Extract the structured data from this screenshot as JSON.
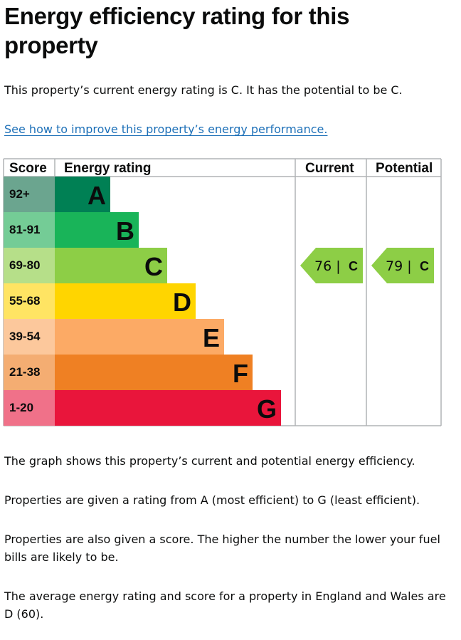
{
  "title": "Energy efficiency rating for this property",
  "summary": "This property’s current energy rating is C. It has the potential to be C.",
  "improve_link": "See how to improve this property’s energy performance.",
  "chart_data": {
    "type": "table",
    "columns": [
      "Score",
      "Energy rating",
      "Current",
      "Potential"
    ],
    "bands": [
      {
        "letter": "A",
        "score": "92+",
        "color": "#008054",
        "score_color": "#6ba58f"
      },
      {
        "letter": "B",
        "score": "81-91",
        "color": "#19b459",
        "score_color": "#74cc96"
      },
      {
        "letter": "C",
        "score": "69-80",
        "color": "#8dce46",
        "score_color": "#b6df89"
      },
      {
        "letter": "D",
        "score": "55-68",
        "color": "#ffd500",
        "score_color": "#ffe463"
      },
      {
        "letter": "E",
        "score": "39-54",
        "color": "#fcaa65",
        "score_color": "#fcc89c"
      },
      {
        "letter": "F",
        "score": "21-38",
        "color": "#ef8023",
        "score_color": "#f4ad72"
      },
      {
        "letter": "G",
        "score": "1-20",
        "color": "#e9153b",
        "score_color": "#f07189"
      }
    ],
    "current": {
      "score": 76,
      "band": "C"
    },
    "potential": {
      "score": 79,
      "band": "C"
    }
  },
  "paragraphs": [
    "The graph shows this property’s current and potential energy efficiency.",
    "Properties are given a rating from A (most efficient) to G (least efficient).",
    "Properties are also given a score. The higher the number the lower your fuel bills are likely to be.",
    "The average energy rating and score for a property in England and Wales are D (60)."
  ]
}
